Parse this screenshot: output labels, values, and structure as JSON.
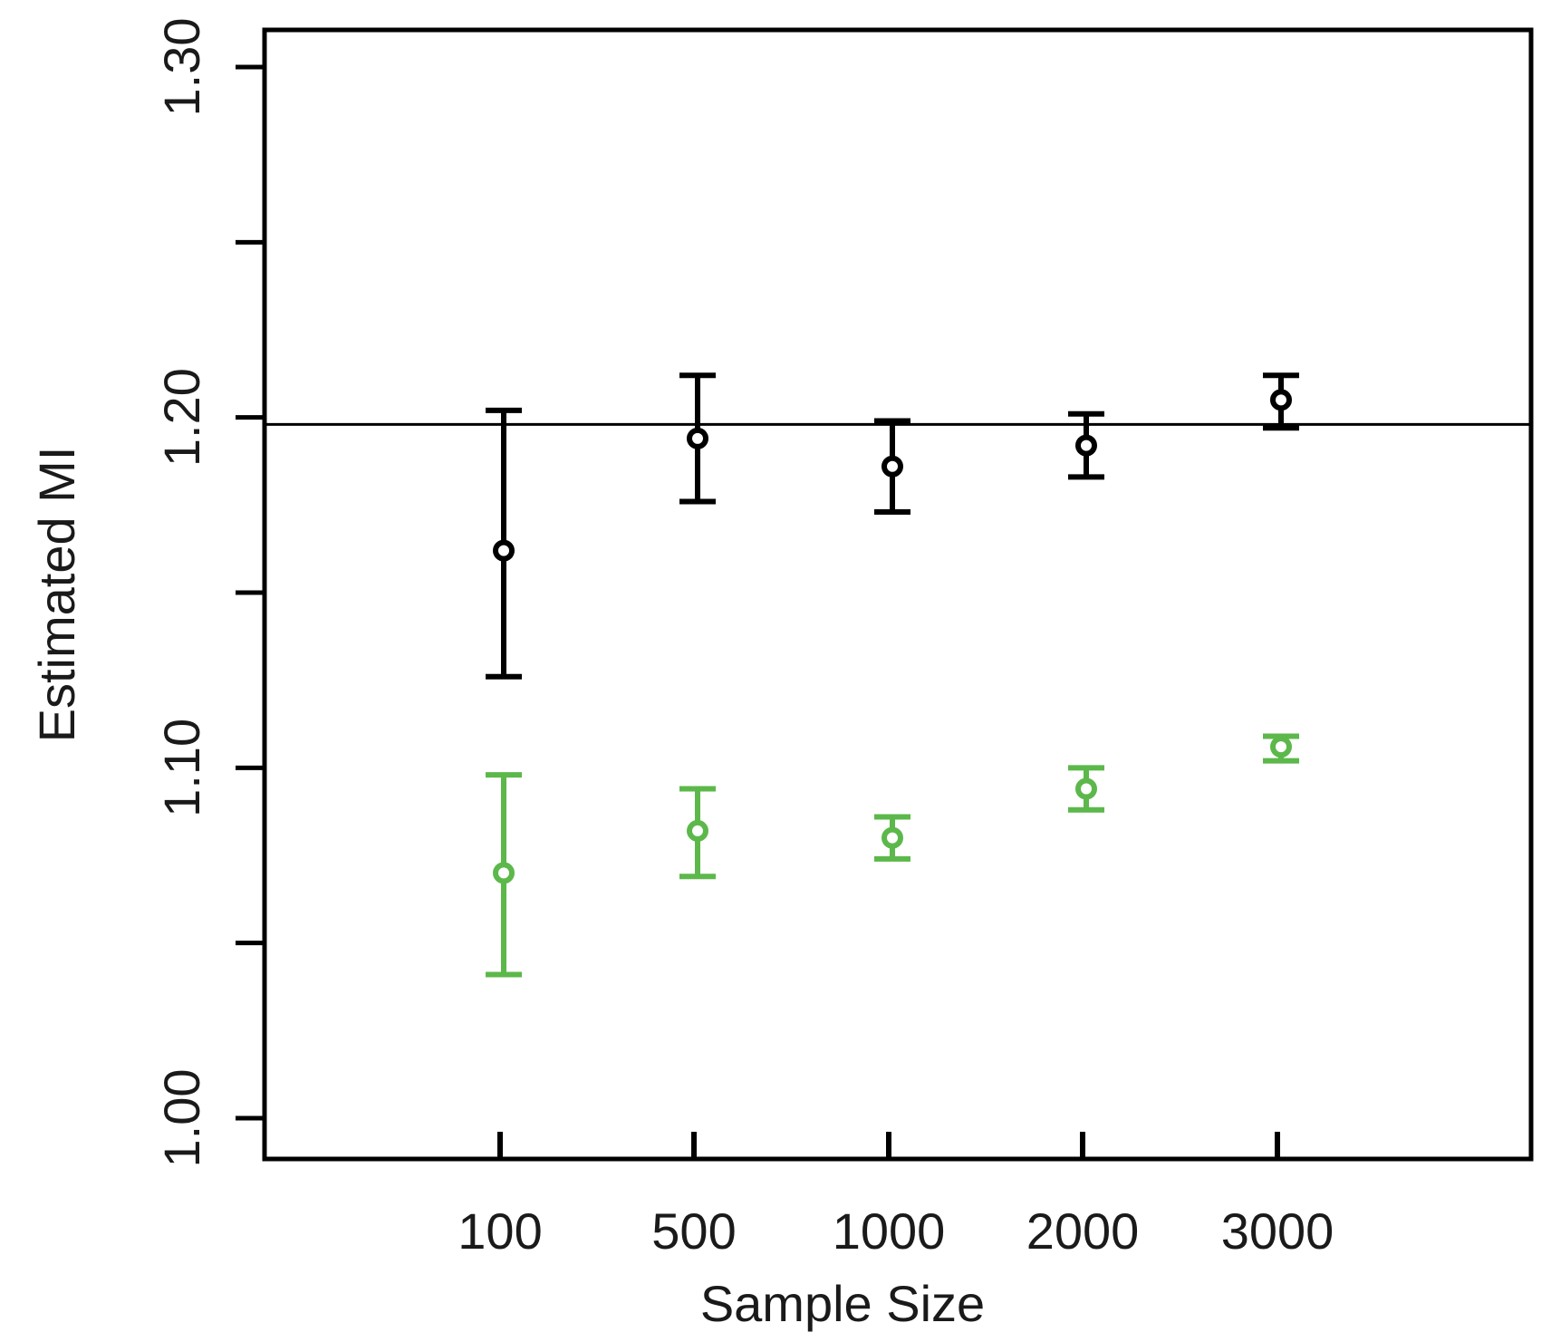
{
  "chart_data": {
    "type": "scatter",
    "title": "",
    "xlabel": "Sample Size",
    "ylabel": "Estimated MI",
    "categories": [
      "100",
      "500",
      "1000",
      "2000",
      "3000"
    ],
    "ylim": [
      0.987,
      1.31
    ],
    "yticks": [
      1.0,
      1.05,
      1.1,
      1.15,
      1.2,
      1.25,
      1.3
    ],
    "ytick_labels": [
      "1.00",
      "",
      "1.10",
      "",
      "1.20",
      "",
      "1.30"
    ],
    "reference_line": 1.198,
    "grid": false,
    "legend": "none",
    "series": [
      {
        "color": "#000000",
        "values": [
          1.162,
          1.194,
          1.186,
          1.192,
          1.205
        ],
        "lower": [
          1.126,
          1.176,
          1.173,
          1.183,
          1.197
        ],
        "upper": [
          1.202,
          1.212,
          1.199,
          1.201,
          1.212
        ]
      },
      {
        "color": "#5cb84a",
        "values": [
          1.07,
          1.082,
          1.08,
          1.094,
          1.106
        ],
        "lower": [
          1.041,
          1.069,
          1.074,
          1.088,
          1.102
        ],
        "upper": [
          1.098,
          1.094,
          1.086,
          1.1,
          1.109
        ]
      }
    ]
  }
}
